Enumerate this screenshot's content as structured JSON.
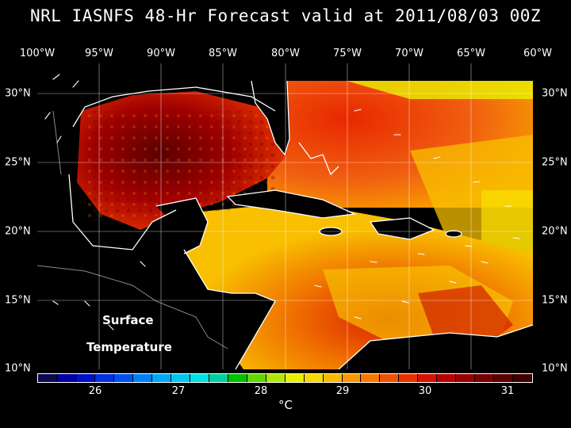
{
  "title": "NRL IASNFS  48-Hr Forecast valid at 2011/08/03 00Z",
  "lon_labels": [
    "100°W",
    "95°W",
    "90°W",
    "85°W",
    "80°W",
    "75°W",
    "70°W",
    "65°W",
    "60°W"
  ],
  "lat_labels": [
    "30°N",
    "25°N",
    "20°N",
    "15°N",
    "10°N"
  ],
  "map_label_line1": "Surface",
  "map_label_line2": "Temperature",
  "colorbar": {
    "unit": "°C",
    "tick_labels": [
      "26",
      "27",
      "28",
      "29",
      "30",
      "31"
    ],
    "colors": [
      "#0a0a50",
      "#0000a0",
      "#0010c8",
      "#0030e0",
      "#0050f0",
      "#0080f8",
      "#00a8f8",
      "#00c8f0",
      "#00e0e0",
      "#00d0a0",
      "#00c000",
      "#60d800",
      "#b0e800",
      "#e8f000",
      "#f8d800",
      "#f8b800",
      "#f89800",
      "#f87800",
      "#f05000",
      "#e83000",
      "#d81000",
      "#b80000",
      "#980000",
      "#780000",
      "#5a0000",
      "#400000"
    ]
  }
}
